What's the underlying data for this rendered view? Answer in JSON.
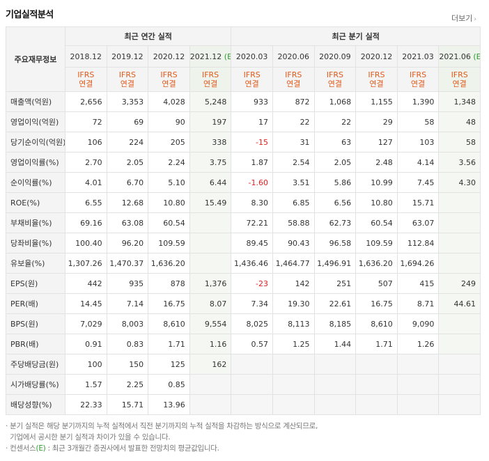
{
  "title": "기업실적분석",
  "more_label": "더보기",
  "row_header_label": "주요재무정보",
  "groups": {
    "annual": "최근 연간 실적",
    "quarter": "최근 분기 실적"
  },
  "periods": [
    {
      "label": "2018.12",
      "est": ""
    },
    {
      "label": "2019.12",
      "est": ""
    },
    {
      "label": "2020.12",
      "est": ""
    },
    {
      "label": "2021.12",
      "est": "(E)"
    },
    {
      "label": "2020.03",
      "est": ""
    },
    {
      "label": "2020.06",
      "est": ""
    },
    {
      "label": "2020.09",
      "est": ""
    },
    {
      "label": "2020.12",
      "est": ""
    },
    {
      "label": "2021.03",
      "est": ""
    },
    {
      "label": "2021.06",
      "est": "(E)"
    }
  ],
  "ifrs": {
    "line1": "IFRS",
    "line2": "연결"
  },
  "rows": [
    {
      "label": "매출액(억원)",
      "values": [
        "2,656",
        "3,353",
        "4,028",
        "5,248",
        "933",
        "872",
        "1,068",
        "1,155",
        "1,390",
        "1,348"
      ]
    },
    {
      "label": "영업이익(억원)",
      "values": [
        "72",
        "69",
        "90",
        "197",
        "17",
        "22",
        "22",
        "29",
        "58",
        "48"
      ]
    },
    {
      "label": "당기순이익(억원)",
      "values": [
        "106",
        "224",
        "205",
        "338",
        "-15",
        "31",
        "63",
        "127",
        "103",
        "58"
      ]
    },
    {
      "label": "영업이익률(%)",
      "values": [
        "2.70",
        "2.05",
        "2.24",
        "3.75",
        "1.87",
        "2.54",
        "2.05",
        "2.48",
        "4.14",
        "3.56"
      ]
    },
    {
      "label": "순이익률(%)",
      "values": [
        "4.01",
        "6.70",
        "5.10",
        "6.44",
        "-1.60",
        "3.51",
        "5.86",
        "10.99",
        "7.45",
        "4.30"
      ]
    },
    {
      "label": "ROE(%)",
      "values": [
        "6.55",
        "12.68",
        "10.80",
        "15.49",
        "8.30",
        "6.85",
        "6.56",
        "10.80",
        "15.71",
        ""
      ]
    },
    {
      "label": "부채비율(%)",
      "values": [
        "69.16",
        "63.08",
        "60.54",
        "",
        "72.21",
        "58.88",
        "62.73",
        "60.54",
        "63.07",
        ""
      ]
    },
    {
      "label": "당좌비율(%)",
      "values": [
        "100.40",
        "96.20",
        "109.59",
        "",
        "89.45",
        "90.43",
        "96.58",
        "109.59",
        "112.84",
        ""
      ]
    },
    {
      "label": "유보율(%)",
      "values": [
        "1,307.26",
        "1,470.37",
        "1,636.20",
        "",
        "1,436.46",
        "1,464.77",
        "1,496.91",
        "1,636.20",
        "1,694.26",
        ""
      ]
    },
    {
      "label": "EPS(원)",
      "values": [
        "442",
        "935",
        "878",
        "1,376",
        "-23",
        "142",
        "251",
        "507",
        "415",
        "249"
      ]
    },
    {
      "label": "PER(배)",
      "values": [
        "14.45",
        "7.14",
        "16.75",
        "8.07",
        "7.34",
        "19.30",
        "22.61",
        "16.75",
        "8.71",
        "44.61"
      ]
    },
    {
      "label": "BPS(원)",
      "values": [
        "7,029",
        "8,003",
        "8,610",
        "9,554",
        "8,025",
        "8,113",
        "8,185",
        "8,610",
        "9,090",
        ""
      ]
    },
    {
      "label": "PBR(배)",
      "values": [
        "0.91",
        "0.83",
        "1.71",
        "1.16",
        "0.57",
        "1.25",
        "1.44",
        "1.71",
        "1.26",
        ""
      ]
    },
    {
      "label": "주당배당금(원)",
      "values": [
        "100",
        "150",
        "125",
        "162",
        "",
        "",
        "",
        "",
        "",
        ""
      ]
    },
    {
      "label": "시가배당률(%)",
      "values": [
        "1.57",
        "2.25",
        "0.85",
        "",
        "",
        "",
        "",
        "",
        "",
        ""
      ]
    },
    {
      "label": "배당성향(%)",
      "values": [
        "22.33",
        "15.71",
        "13.96",
        "",
        "",
        "",
        "",
        "",
        "",
        ""
      ]
    }
  ],
  "notes": {
    "line1": "분기 실적은 해당 분기까지의 누적 실적에서 직전 분기까지의 누적 실적을 차감하는 방식으로 계산되므로,",
    "line2": "기업에서 공시한 분기 실적과 차이가 있을 수 있습니다.",
    "line3_pre": "컨센서스",
    "line3_e": "(E)",
    "line3_post": ": 최근 3개월간 증권사에서 발표한 전망치의 평균값입니다."
  }
}
